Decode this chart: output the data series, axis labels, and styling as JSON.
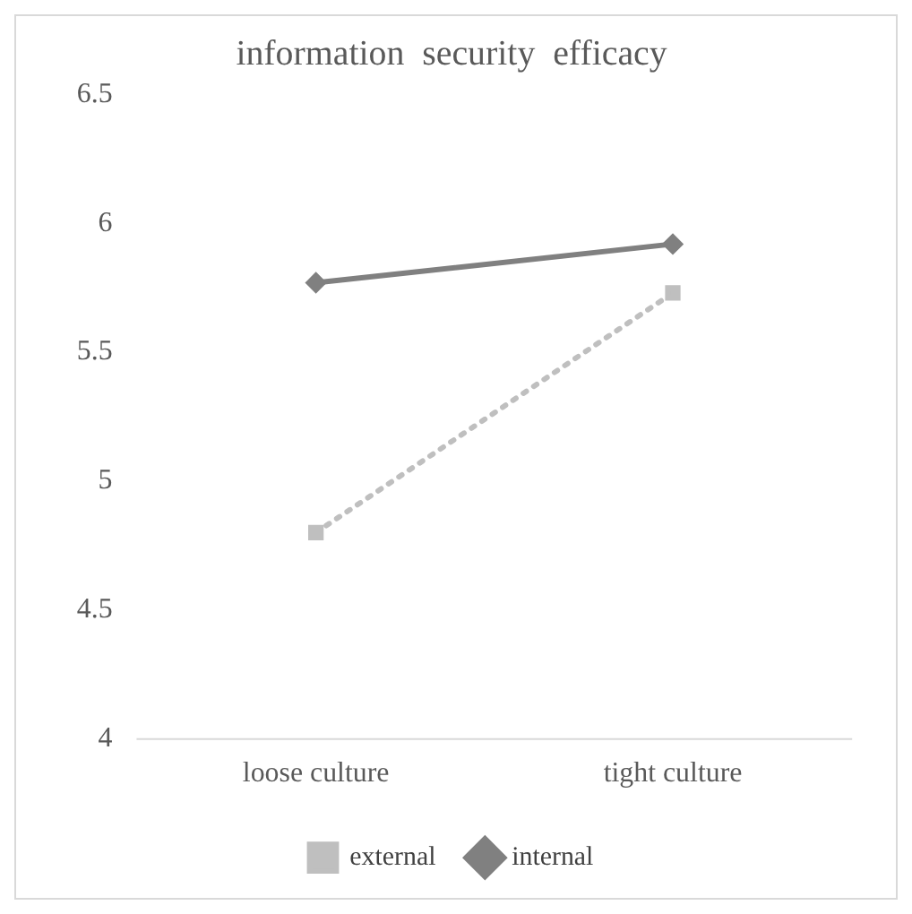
{
  "chart_data": {
    "type": "line",
    "title": "information  security  efficacy",
    "categories": [
      "loose culture",
      "tight culture"
    ],
    "series": [
      {
        "name": "external",
        "color": "#bfbfbf",
        "values": [
          4.8,
          5.73
        ],
        "line_style": "dotted",
        "marker": "square"
      },
      {
        "name": "internal",
        "color": "#808080",
        "values": [
          5.77,
          5.92
        ],
        "line_style": "solid",
        "marker": "diamond"
      }
    ],
    "ylim": [
      4,
      6.5
    ],
    "yticks": [
      4,
      4.5,
      5,
      5.5,
      6,
      6.5
    ],
    "grid": false,
    "legend": "bottom"
  }
}
